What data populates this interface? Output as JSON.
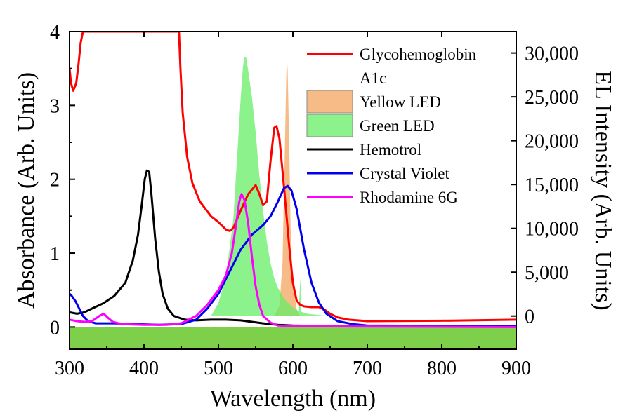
{
  "chart_data": {
    "type": "line",
    "xlabel": "Wavelength (nm)",
    "ylabel": "Absorbance (Arb. Units)",
    "y2label": "EL Intensity (Arb. Units)",
    "xlim": [
      300,
      900
    ],
    "ylim": [
      -0.3,
      4.0
    ],
    "y2lim": [
      -3780,
      32450
    ],
    "x_ticks": [
      300,
      400,
      500,
      600,
      700,
      800,
      900
    ],
    "x_tick_labels": [
      "300",
      "400",
      "500",
      "600",
      "700",
      "800",
      "900"
    ],
    "y_ticks": [
      0,
      1,
      2,
      3,
      4
    ],
    "y_tick_labels": [
      "0",
      "1",
      "2",
      "3",
      "4"
    ],
    "y2_ticks": [
      0,
      5000,
      10000,
      15000,
      20000,
      25000,
      30000
    ],
    "y2_tick_labels": [
      "0",
      "5,000",
      "10,000",
      "15,000",
      "20,000",
      "25,000",
      "30,000"
    ],
    "legend_position": "top-right",
    "baseline_fill_color": "#7ed04b",
    "series": [
      {
        "name": "Glycohemoglobin A1c",
        "legend_lines": [
          "Glycohemoglobin",
          "A1c"
        ],
        "kind": "line",
        "axis": "left",
        "color": "#ff0000",
        "points": [
          [
            300,
            3.5
          ],
          [
            302,
            3.3
          ],
          [
            305,
            3.2
          ],
          [
            309,
            3.3
          ],
          [
            312,
            3.55
          ],
          [
            315,
            3.85
          ],
          [
            318,
            4.0
          ],
          [
            447,
            4.0
          ],
          [
            449,
            3.5
          ],
          [
            452,
            2.9
          ],
          [
            458,
            2.3
          ],
          [
            465,
            1.95
          ],
          [
            475,
            1.7
          ],
          [
            490,
            1.5
          ],
          [
            500,
            1.42
          ],
          [
            510,
            1.32
          ],
          [
            515,
            1.3
          ],
          [
            520,
            1.34
          ],
          [
            530,
            1.58
          ],
          [
            540,
            1.8
          ],
          [
            550,
            1.92
          ],
          [
            555,
            1.8
          ],
          [
            560,
            1.65
          ],
          [
            565,
            1.7
          ],
          [
            570,
            2.25
          ],
          [
            575,
            2.7
          ],
          [
            578,
            2.72
          ],
          [
            582,
            2.55
          ],
          [
            588,
            1.9
          ],
          [
            595,
            1.1
          ],
          [
            600,
            0.6
          ],
          [
            605,
            0.36
          ],
          [
            610,
            0.3
          ],
          [
            615,
            0.28
          ],
          [
            625,
            0.27
          ],
          [
            635,
            0.27
          ],
          [
            642,
            0.24
          ],
          [
            650,
            0.18
          ],
          [
            660,
            0.13
          ],
          [
            675,
            0.1
          ],
          [
            700,
            0.08
          ],
          [
            800,
            0.085
          ],
          [
            900,
            0.1
          ]
        ]
      },
      {
        "name": "Yellow LED",
        "kind": "area",
        "axis": "right",
        "color": "#f4a460",
        "opacity": 0.75,
        "points": [
          [
            575,
            0
          ],
          [
            582,
            1200
          ],
          [
            586,
            6000
          ],
          [
            589,
            18000
          ],
          [
            591,
            27000
          ],
          [
            592,
            29500
          ],
          [
            593,
            28000
          ],
          [
            595,
            20000
          ],
          [
            597,
            10000
          ],
          [
            600,
            3500
          ],
          [
            605,
            800
          ],
          [
            610,
            0
          ]
        ]
      },
      {
        "name": "Green LED",
        "kind": "area",
        "axis": "right",
        "color": "#66ee66",
        "opacity": 0.75,
        "points": [
          [
            490,
            0
          ],
          [
            500,
            1500
          ],
          [
            510,
            4500
          ],
          [
            520,
            11000
          ],
          [
            525,
            18000
          ],
          [
            530,
            25000
          ],
          [
            533,
            28500
          ],
          [
            535,
            29500
          ],
          [
            537,
            29600
          ],
          [
            540,
            28000
          ],
          [
            545,
            25000
          ],
          [
            550,
            21000
          ],
          [
            555,
            16000
          ],
          [
            560,
            12000
          ],
          [
            565,
            8500
          ],
          [
            570,
            6000
          ],
          [
            575,
            4300
          ],
          [
            580,
            3200
          ],
          [
            590,
            1800
          ],
          [
            600,
            1000
          ],
          [
            605,
            700
          ],
          [
            608,
            500
          ],
          [
            610,
            4500
          ],
          [
            611,
            500
          ],
          [
            620,
            250
          ],
          [
            640,
            80
          ],
          [
            650,
            0
          ]
        ]
      },
      {
        "name": "Hemotrol",
        "kind": "line",
        "axis": "left",
        "color": "#000000",
        "points": [
          [
            300,
            0.2
          ],
          [
            310,
            0.18
          ],
          [
            320,
            0.2
          ],
          [
            330,
            0.25
          ],
          [
            345,
            0.32
          ],
          [
            360,
            0.42
          ],
          [
            375,
            0.6
          ],
          [
            385,
            0.9
          ],
          [
            392,
            1.25
          ],
          [
            397,
            1.65
          ],
          [
            401,
            2.0
          ],
          [
            404,
            2.12
          ],
          [
            407,
            2.1
          ],
          [
            410,
            1.8
          ],
          [
            415,
            1.2
          ],
          [
            420,
            0.75
          ],
          [
            425,
            0.45
          ],
          [
            432,
            0.25
          ],
          [
            440,
            0.15
          ],
          [
            455,
            0.1
          ],
          [
            470,
            0.09
          ],
          [
            490,
            0.1
          ],
          [
            510,
            0.1
          ],
          [
            530,
            0.09
          ],
          [
            545,
            0.07
          ],
          [
            560,
            0.05
          ],
          [
            580,
            0.03
          ],
          [
            600,
            0.02
          ],
          [
            650,
            0.01
          ],
          [
            700,
            0.01
          ],
          [
            900,
            0.01
          ]
        ]
      },
      {
        "name": "Crystal Violet",
        "kind": "line",
        "axis": "left",
        "color": "#0000ee",
        "points": [
          [
            300,
            0.45
          ],
          [
            303,
            0.42
          ],
          [
            308,
            0.35
          ],
          [
            313,
            0.25
          ],
          [
            318,
            0.15
          ],
          [
            325,
            0.08
          ],
          [
            335,
            0.05
          ],
          [
            360,
            0.05
          ],
          [
            390,
            0.04
          ],
          [
            420,
            0.03
          ],
          [
            450,
            0.04
          ],
          [
            470,
            0.1
          ],
          [
            485,
            0.25
          ],
          [
            500,
            0.45
          ],
          [
            515,
            0.75
          ],
          [
            530,
            1.05
          ],
          [
            545,
            1.25
          ],
          [
            560,
            1.38
          ],
          [
            570,
            1.5
          ],
          [
            580,
            1.7
          ],
          [
            588,
            1.88
          ],
          [
            593,
            1.91
          ],
          [
            598,
            1.85
          ],
          [
            605,
            1.6
          ],
          [
            615,
            1.05
          ],
          [
            625,
            0.6
          ],
          [
            635,
            0.33
          ],
          [
            645,
            0.18
          ],
          [
            660,
            0.08
          ],
          [
            680,
            0.04
          ],
          [
            700,
            0.02
          ],
          [
            900,
            0.01
          ]
        ]
      },
      {
        "name": "Rhodamine 6G",
        "kind": "line",
        "axis": "left",
        "color": "#ff00ff",
        "points": [
          [
            300,
            0.1
          ],
          [
            310,
            0.08
          ],
          [
            320,
            0.07
          ],
          [
            330,
            0.08
          ],
          [
            340,
            0.15
          ],
          [
            346,
            0.18
          ],
          [
            350,
            0.14
          ],
          [
            358,
            0.07
          ],
          [
            370,
            0.04
          ],
          [
            400,
            0.03
          ],
          [
            430,
            0.03
          ],
          [
            450,
            0.05
          ],
          [
            470,
            0.15
          ],
          [
            485,
            0.3
          ],
          [
            500,
            0.5
          ],
          [
            510,
            0.7
          ],
          [
            518,
            1.0
          ],
          [
            524,
            1.4
          ],
          [
            528,
            1.7
          ],
          [
            531,
            1.8
          ],
          [
            535,
            1.72
          ],
          [
            540,
            1.4
          ],
          [
            545,
            0.95
          ],
          [
            550,
            0.55
          ],
          [
            555,
            0.3
          ],
          [
            560,
            0.15
          ],
          [
            570,
            0.06
          ],
          [
            580,
            0.02
          ],
          [
            600,
            0.01
          ],
          [
            900,
            0.0
          ]
        ]
      }
    ]
  }
}
